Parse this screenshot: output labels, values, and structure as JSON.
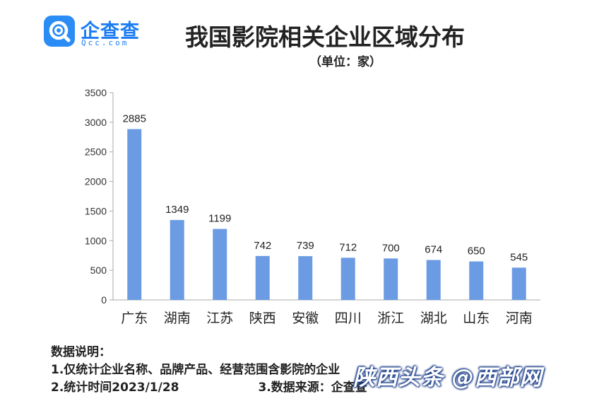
{
  "logo": {
    "name": "企查查",
    "domain": "Qcc.com",
    "icon": "qcc-magnifier-icon",
    "color": "#1c7cf2"
  },
  "notes": {
    "heading": "数据说明：",
    "line1": "1.仅统计企业名称、品牌产品、经营范围含影院的企业",
    "line2": "2.统计时间2023/1/28",
    "line3": "3.数据来源：企查查"
  },
  "watermark": "陕西头条 @西部网",
  "chart_data": {
    "type": "bar",
    "title": "我国影院相关企业区域分布",
    "subtitle": "（单位：家）",
    "categories": [
      "广东",
      "湖南",
      "江苏",
      "陕西",
      "安徽",
      "四川",
      "浙江",
      "湖北",
      "山东",
      "河南"
    ],
    "values": [
      2885,
      1349,
      1199,
      742,
      739,
      712,
      700,
      674,
      650,
      545
    ],
    "yticks": [
      0,
      500,
      1000,
      1500,
      2000,
      2500,
      3000,
      3500
    ],
    "ylim": [
      0,
      3500
    ],
    "xlabel": "",
    "ylabel": "",
    "grid": false,
    "bar_color": "#6b9be3",
    "axis_color": "#aaaaaa"
  }
}
